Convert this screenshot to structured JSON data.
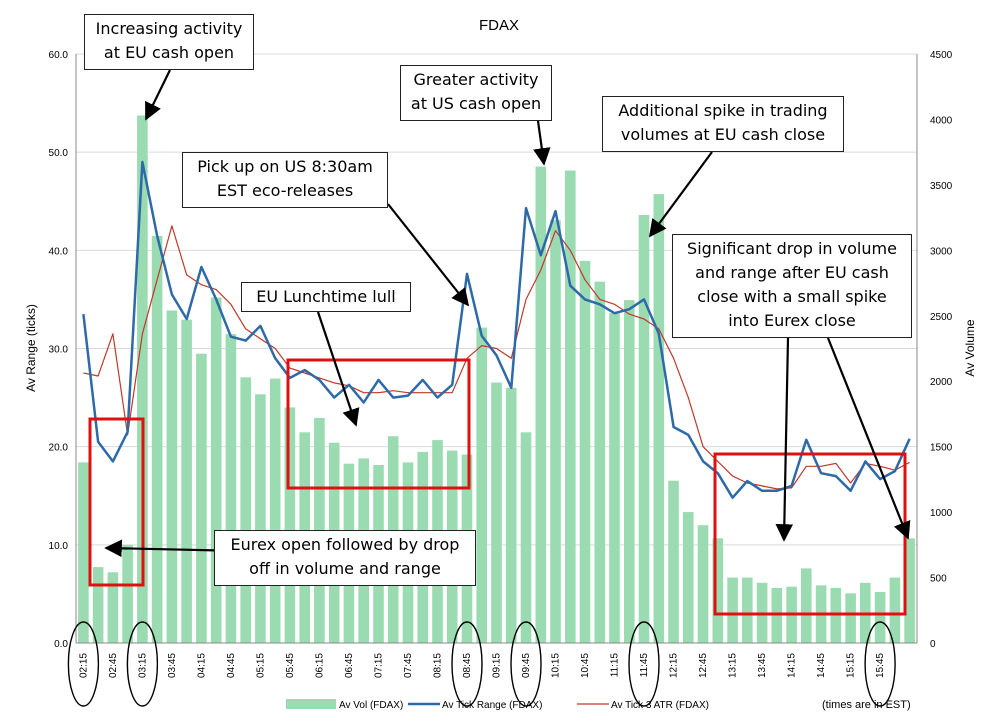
{
  "chart_data": {
    "type": "bar",
    "title": "FDAX",
    "ylabel_left": "Av Range (ticks)",
    "ylabel_right": "Av Volume",
    "ylim_left": [
      0,
      60
    ],
    "ylim_right": [
      0,
      4500
    ],
    "y_ticks_left": [
      "0.0",
      "10.0",
      "20.0",
      "30.0",
      "40.0",
      "50.0",
      "60.0"
    ],
    "y_ticks_right": [
      "0",
      "500",
      "1000",
      "1500",
      "2000",
      "2500",
      "3000",
      "3500",
      "4000",
      "4500"
    ],
    "grid": true,
    "legend_position": "bottom",
    "x_tick_labels": [
      "02:15",
      "02:45",
      "03:15",
      "03:45",
      "04:15",
      "04:45",
      "05:15",
      "05:45",
      "06:15",
      "06:45",
      "07:15",
      "07:45",
      "08:15",
      "08:45",
      "09:15",
      "09:45",
      "10:15",
      "10:45",
      "11:15",
      "11:45",
      "12:15",
      "12:45",
      "13:15",
      "13:45",
      "14:15",
      "14:45",
      "15:15",
      "15:45"
    ],
    "x_note": "(times are in EST)",
    "series": [
      {
        "name": "Av Vol (FDAX)",
        "type": "bar",
        "axis": "right",
        "color": "#9adbb1",
        "values": [
          1380,
          580,
          540,
          750,
          4030,
          3110,
          2540,
          2470,
          2210,
          2640,
          2360,
          2030,
          1900,
          2020,
          1800,
          1610,
          1720,
          1530,
          1370,
          1410,
          1360,
          1580,
          1380,
          1460,
          1550,
          1470,
          1440,
          2410,
          1990,
          1950,
          1610,
          3640,
          3230,
          3610,
          2920,
          2760,
          2520,
          2620,
          3270,
          3430,
          1240,
          1000,
          900,
          800,
          500,
          500,
          460,
          420,
          430,
          570,
          440,
          420,
          380,
          460,
          390,
          500,
          800
        ]
      },
      {
        "name": "Av Tick Range (FDAX)",
        "type": "line",
        "axis": "left",
        "color": "#2e6aa8",
        "values": [
          33.5,
          20.5,
          18.5,
          21.5,
          49.0,
          41.5,
          35.5,
          33.0,
          38.3,
          35.0,
          31.2,
          30.8,
          32.3,
          29.0,
          27.0,
          27.8,
          26.8,
          25.0,
          26.3,
          24.5,
          26.8,
          25.0,
          25.2,
          26.8,
          25.0,
          26.3,
          37.6,
          31.3,
          29.3,
          26.0,
          44.3,
          39.5,
          44.0,
          36.4,
          35.0,
          34.5,
          33.6,
          34.0,
          35.0,
          31.5,
          22.0,
          21.2,
          18.5,
          17.3,
          14.8,
          16.5,
          15.5,
          15.5,
          16.0,
          20.7,
          17.3,
          17.0,
          15.5,
          18.5,
          16.7,
          17.5,
          20.8
        ]
      },
      {
        "name": "Av Tick 3 ATR (FDAX)",
        "type": "line",
        "axis": "left",
        "color": "#c0392b",
        "values": [
          27.5,
          27.2,
          31.5,
          21.2,
          31.5,
          37.0,
          42.5,
          37.5,
          36.5,
          36.0,
          34.5,
          32.0,
          31.0,
          30.0,
          28.0,
          27.5,
          27.0,
          26.5,
          26.2,
          25.5,
          25.5,
          25.7,
          25.5,
          25.5,
          25.5,
          25.5,
          29.0,
          30.3,
          30.0,
          29.0,
          35.0,
          38.0,
          42.0,
          40.0,
          37.0,
          35.0,
          34.5,
          33.5,
          33.0,
          32.0,
          29.0,
          25.0,
          20.0,
          18.5,
          17.0,
          16.3,
          16.0,
          15.7,
          15.8,
          18.0,
          18.0,
          18.3,
          16.3,
          18.3,
          18.0,
          17.6,
          18.4
        ]
      }
    ],
    "annotations": [
      "Increasing activity at EU cash open",
      "Greater activity at US cash open",
      "Additional spike in trading volumes at EU cash close",
      "Pick up on US 8:30am EST eco-releases",
      "EU Lunchtime lull",
      "Significant drop in volume and range after EU cash close with a small spike into Eurex close",
      "Eurex open followed by drop off in volume and range"
    ]
  },
  "annotations": {
    "eu_open": [
      "Increasing activity",
      "at EU cash open"
    ],
    "us_open": [
      "Greater activity",
      "at US cash open"
    ],
    "eu_close": [
      "Additional spike in trading",
      "volumes at EU cash close"
    ],
    "us_eco": [
      "Pick up on US 8:30am",
      "EST eco-releases"
    ],
    "lunch": [
      "EU Lunchtime lull"
    ],
    "drop": [
      "Significant drop in volume",
      "and range after EU cash",
      "close with a small spike",
      "into Eurex close"
    ],
    "eurex_open": [
      "Eurex open followed by drop",
      "off in volume and range"
    ]
  }
}
